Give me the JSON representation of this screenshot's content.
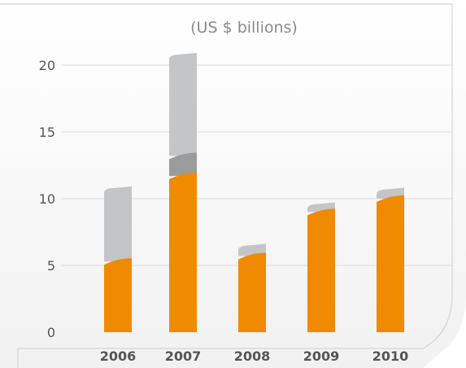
{
  "subtitle": "(US $ billions)",
  "chart_data": {
    "type": "bar",
    "title": "",
    "subtitle": "(US $ billions)",
    "xlabel": "",
    "ylabel": "",
    "categories": [
      "2006",
      "2007",
      "2008",
      "2009",
      "2010"
    ],
    "series": [
      {
        "values": [
          5.3,
          11.7,
          5.7,
          9.0,
          10.0
        ],
        "color": "#f08a00"
      },
      {
        "values": [
          0.0,
          1.5,
          0.0,
          0.0,
          0.0
        ],
        "color": "#9b9b9b"
      },
      {
        "values": [
          5.5,
          7.6,
          0.8,
          0.6,
          0.7
        ],
        "color": "#c4c5c7"
      }
    ],
    "ylim": [
      0,
      20
    ],
    "yticks": [
      0,
      5,
      10,
      15,
      20
    ],
    "grid": true,
    "legend": "none"
  }
}
